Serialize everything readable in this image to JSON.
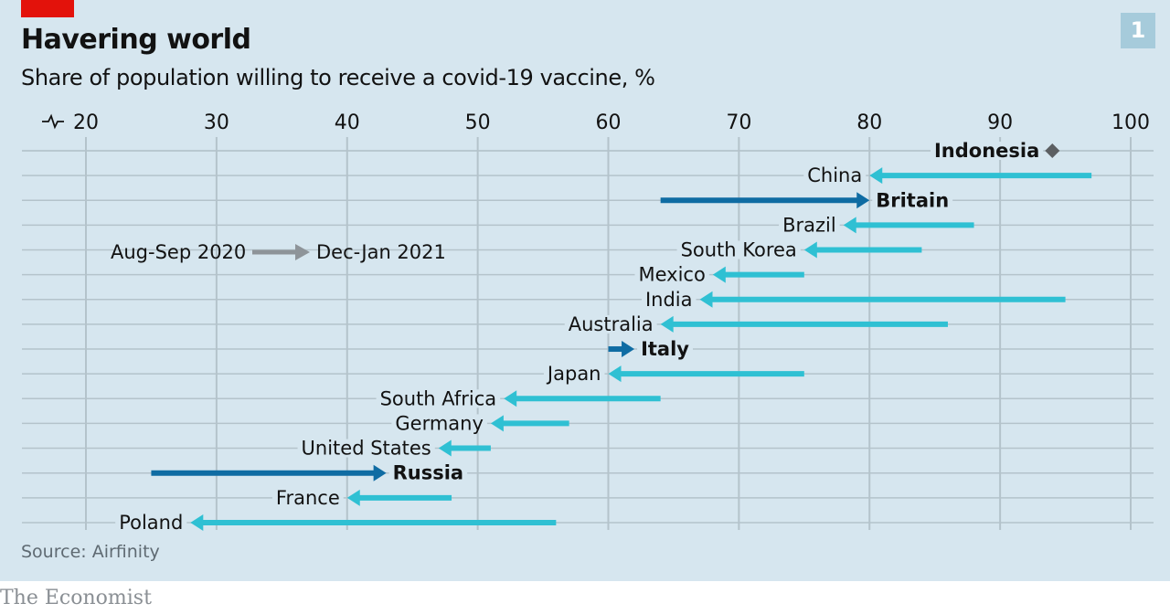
{
  "header": {
    "title": "Havering world",
    "subtitle": "Share of population willing to receive a covid-19 vaccine, %",
    "chart_number": "1"
  },
  "footer": {
    "source": "Source: Airfinity",
    "brand": "The Economist"
  },
  "colors": {
    "background": "#d6e6ef",
    "accent_red": "#e3120b",
    "decrease_arrow": "#2fc0d3",
    "increase_arrow": "#0f6ca3",
    "legend_arrow": "#8e9499",
    "single_point": "#5c5f62",
    "gridline": "#b4c3cb"
  },
  "chart_data": {
    "type": "arrow-dot",
    "title": "Havering world",
    "subtitle": "Share of population willing to receive a covid-19 vaccine, %",
    "xlabel": "",
    "ylabel": "",
    "xlim": [
      20,
      100
    ],
    "x_ticks": [
      20,
      30,
      40,
      50,
      60,
      70,
      80,
      90,
      100
    ],
    "axis_break_symbol": true,
    "grid": true,
    "legend": {
      "from_label": "Aug-Sep 2020",
      "to_label": "Dec-Jan 2021",
      "placement": "left"
    },
    "series_labels": [
      "Aug-Sep 2020",
      "Dec-Jan 2021"
    ],
    "rows": [
      {
        "country": "Indonesia",
        "start": null,
        "end": 94,
        "bold": true
      },
      {
        "country": "China",
        "start": 97,
        "end": 80,
        "bold": false
      },
      {
        "country": "Britain",
        "start": 64,
        "end": 80,
        "bold": true
      },
      {
        "country": "Brazil",
        "start": 88,
        "end": 78,
        "bold": false
      },
      {
        "country": "South Korea",
        "start": 84,
        "end": 75,
        "bold": false
      },
      {
        "country": "Mexico",
        "start": 75,
        "end": 68,
        "bold": false
      },
      {
        "country": "India",
        "start": 95,
        "end": 67,
        "bold": false
      },
      {
        "country": "Australia",
        "start": 86,
        "end": 64,
        "bold": false
      },
      {
        "country": "Italy",
        "start": 60,
        "end": 62,
        "bold": true
      },
      {
        "country": "Japan",
        "start": 75,
        "end": 60,
        "bold": false
      },
      {
        "country": "South Africa",
        "start": 64,
        "end": 52,
        "bold": false
      },
      {
        "country": "Germany",
        "start": 57,
        "end": 51,
        "bold": false
      },
      {
        "country": "United States",
        "start": 51,
        "end": 47,
        "bold": false
      },
      {
        "country": "Russia",
        "start": 25,
        "end": 43,
        "bold": true
      },
      {
        "country": "France",
        "start": 48,
        "end": 40,
        "bold": false
      },
      {
        "country": "Poland",
        "start": 56,
        "end": 28,
        "bold": false
      }
    ],
    "source": "Airfinity"
  }
}
